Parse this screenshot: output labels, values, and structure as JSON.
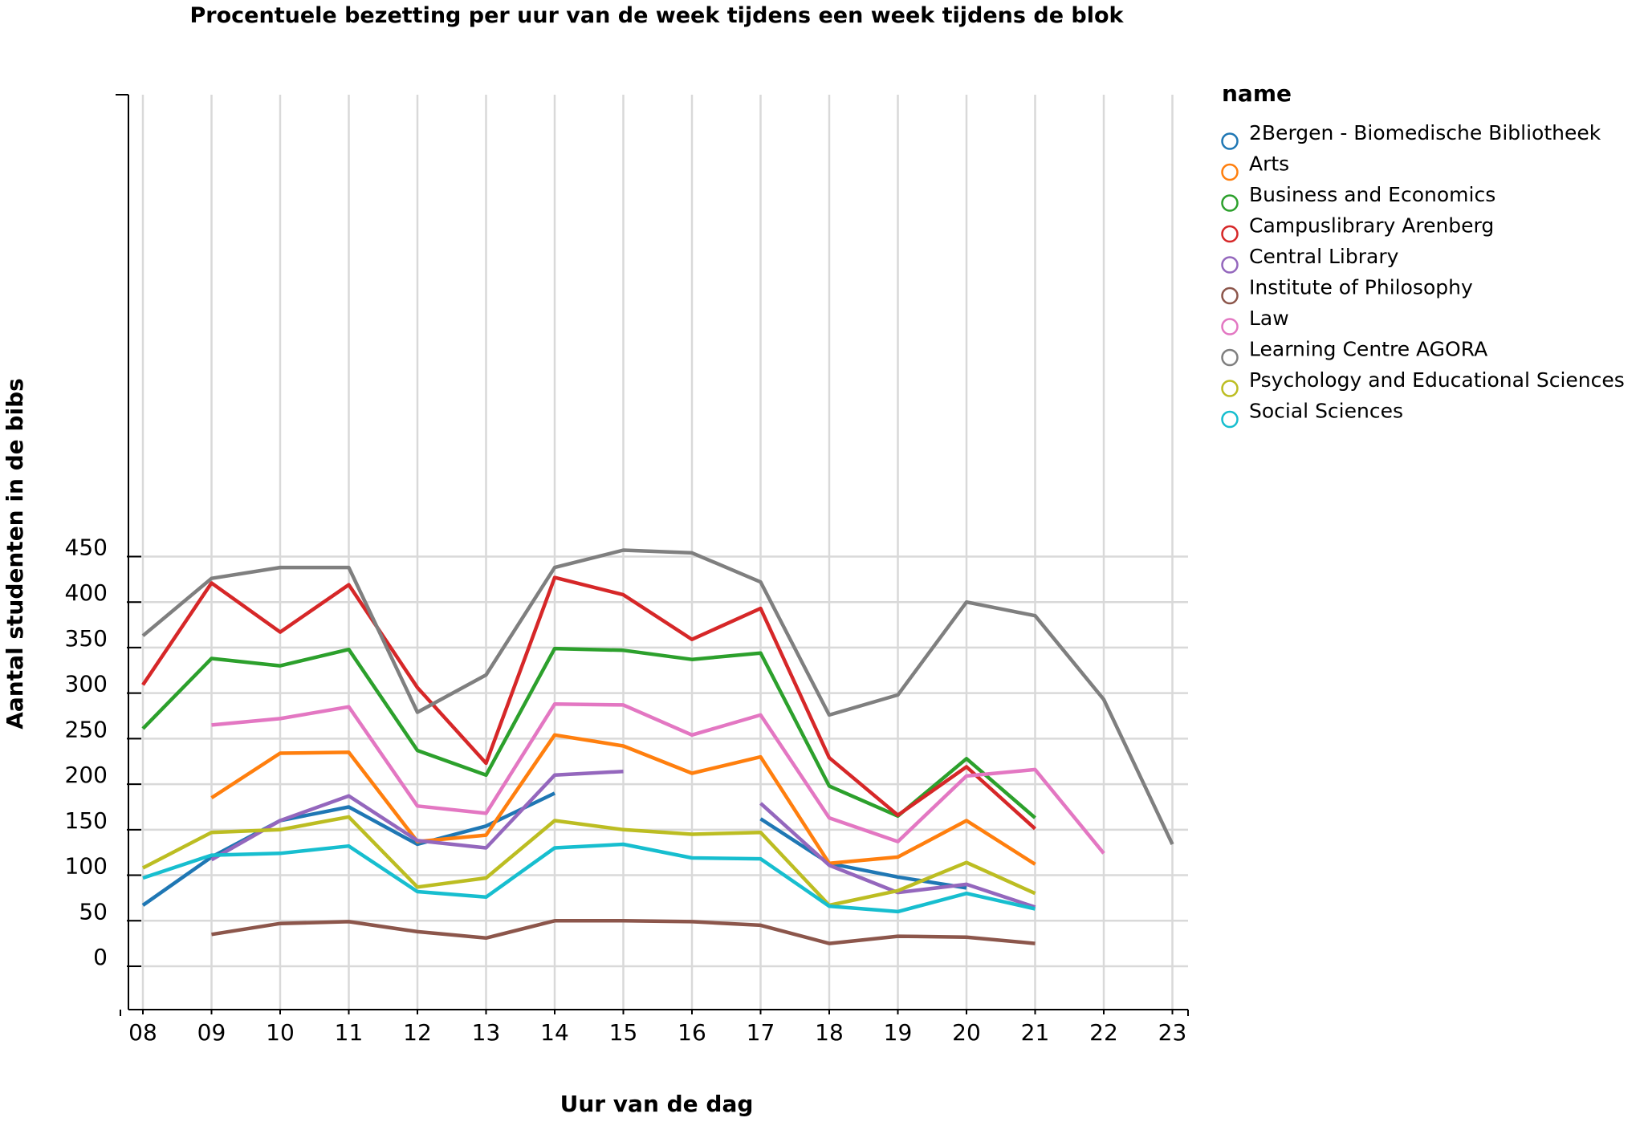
{
  "chart_data": {
    "type": "line",
    "title": "Procentuele bezetting per uur van de week tijdens een week tijdens de blok",
    "xlabel": "Uur van de dag",
    "ylabel": "Aantal studenten in de bibs",
    "x": [
      "08",
      "09",
      "10",
      "11",
      "12",
      "13",
      "14",
      "15",
      "16",
      "17",
      "18",
      "19",
      "20",
      "21",
      "22",
      "23"
    ],
    "yticks": [
      0,
      50,
      100,
      150,
      200,
      250,
      300,
      350,
      400,
      450
    ],
    "ylim": [
      -22,
      478
    ],
    "grid": true,
    "legend_title": "name",
    "legend_position": "right",
    "series": [
      {
        "name": "2Bergen - Biomedische Bibliotheek",
        "color": "#1f77b4",
        "values": [
          67,
          120,
          160,
          175,
          134,
          154,
          190,
          null,
          null,
          162,
          113,
          98,
          86,
          null,
          null,
          null
        ]
      },
      {
        "name": "Arts",
        "color": "#ff7f0e",
        "values": [
          null,
          185,
          234,
          235,
          137,
          144,
          254,
          242,
          212,
          230,
          113,
          120,
          160,
          112,
          null,
          null
        ]
      },
      {
        "name": "Business and Economics",
        "color": "#2ca02c",
        "values": [
          261,
          338,
          330,
          348,
          237,
          210,
          349,
          347,
          337,
          344,
          198,
          165,
          228,
          163,
          null,
          null
        ]
      },
      {
        "name": "Campuslibrary Arenberg",
        "color": "#d62728",
        "values": [
          309,
          421,
          367,
          419,
          306,
          223,
          427,
          408,
          359,
          393,
          229,
          166,
          219,
          151,
          null,
          null
        ]
      },
      {
        "name": "Central Library",
        "color": "#9467bd",
        "values": [
          null,
          117,
          160,
          187,
          138,
          130,
          210,
          214,
          null,
          179,
          111,
          81,
          90,
          65,
          null,
          null
        ]
      },
      {
        "name": "Institute of Philosophy",
        "color": "#8c564b",
        "values": [
          null,
          35,
          47,
          49,
          38,
          31,
          50,
          50,
          49,
          45,
          25,
          33,
          32,
          25,
          null,
          null
        ]
      },
      {
        "name": "Law",
        "color": "#e377c2",
        "values": [
          null,
          265,
          272,
          285,
          176,
          168,
          288,
          287,
          254,
          276,
          163,
          137,
          209,
          216,
          124,
          null
        ]
      },
      {
        "name": "Learning Centre AGORA",
        "color": "#7f7f7f",
        "values": [
          363,
          426,
          438,
          438,
          279,
          320,
          438,
          457,
          454,
          422,
          276,
          298,
          400,
          385,
          293,
          134
        ]
      },
      {
        "name": "Psychology and Educational Sciences",
        "color": "#bcbd22",
        "values": [
          108,
          147,
          150,
          164,
          87,
          97,
          160,
          150,
          145,
          147,
          67,
          83,
          114,
          80,
          null,
          null
        ]
      },
      {
        "name": "Social Sciences",
        "color": "#17becf",
        "values": [
          97,
          122,
          124,
          132,
          82,
          76,
          130,
          134,
          119,
          118,
          66,
          60,
          80,
          63,
          null,
          null
        ]
      }
    ]
  }
}
